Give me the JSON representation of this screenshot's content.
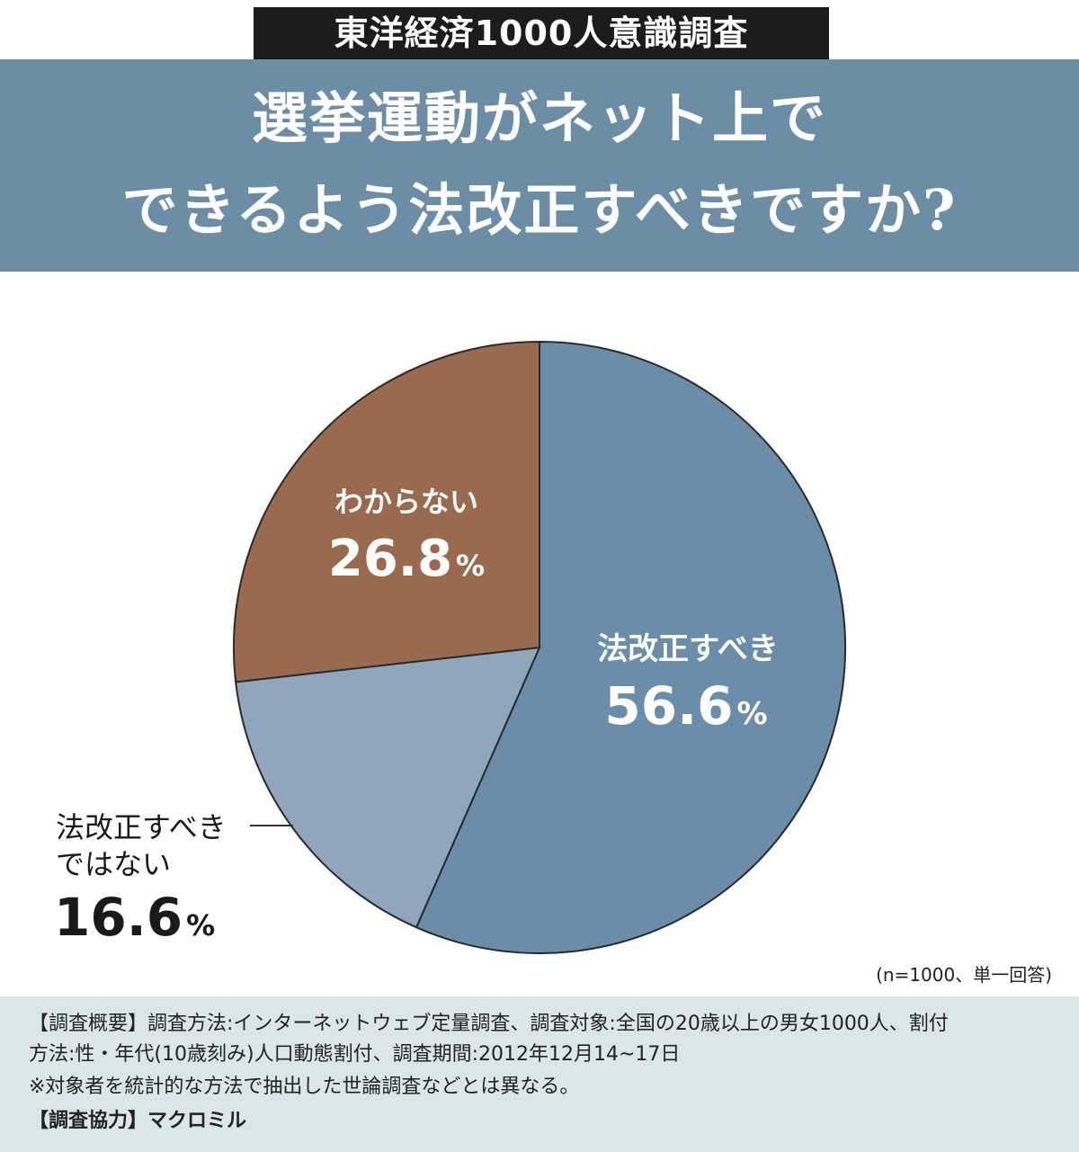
{
  "header": {
    "badge": "東洋経済1000人意識調査",
    "title_line1": "選挙運動がネット上で",
    "title_line2": "できるよう法改正すべきですか?"
  },
  "chart_data": {
    "type": "pie",
    "title": "選挙運動がネット上でできるよう法改正すべきですか?",
    "labels": [
      "法改正すべき",
      "法改正すべきではない",
      "わからない"
    ],
    "values": [
      56.6,
      16.6,
      26.8
    ],
    "colors": [
      "#6a8ea9",
      "#8fa6bd",
      "#9a6a4f"
    ],
    "value_suffix": "%",
    "label_texts": [
      {
        "name": "法改正すべき",
        "value": "56.6"
      },
      {
        "name_lines": [
          "法改正すべき",
          "ではない"
        ],
        "value": "16.6"
      },
      {
        "name": "わからない",
        "value": "26.8"
      }
    ]
  },
  "note": "(n=1000、単一回答)",
  "footer": {
    "line1": "【調査概要】調査方法:インターネットウェブ定量調査、調査対象:全国の20歳以上の男女1000人、割付",
    "line2": "方法:性・年代(10歳刻み)人口動態割付、調査期間:2012年12月14~17日",
    "line3": "※対象者を統計的な方法で抽出した世論調査などとは異なる。",
    "line4": "【調査協力】マクロミル"
  }
}
